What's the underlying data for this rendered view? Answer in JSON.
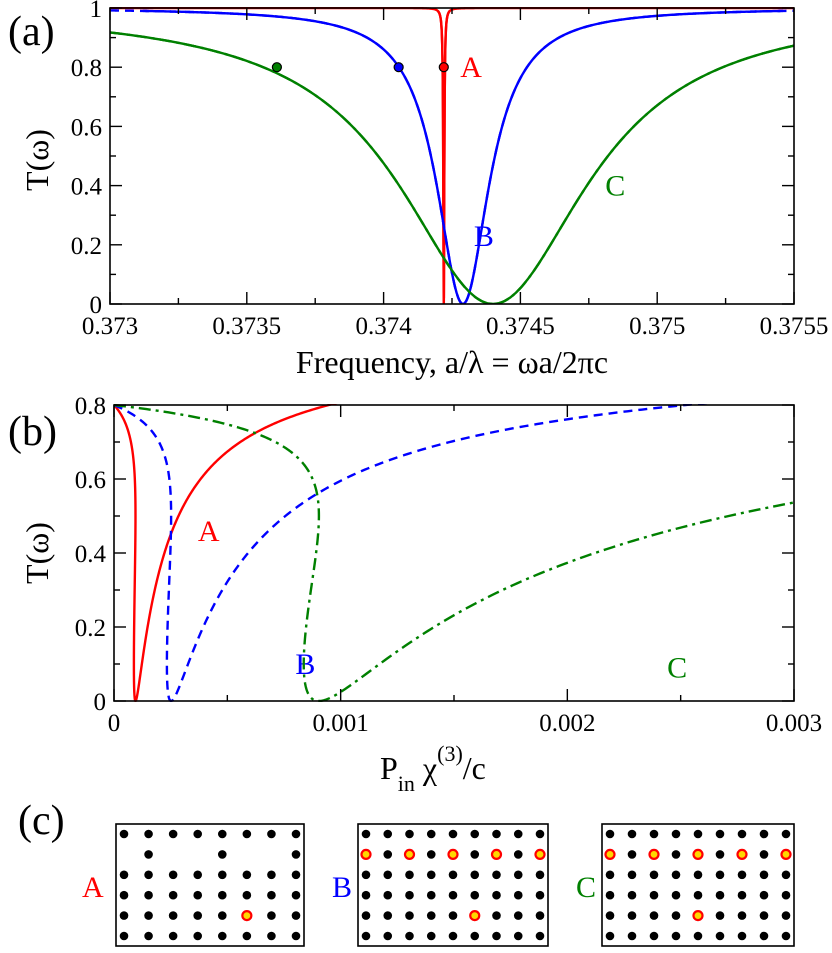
{
  "chart_data": [
    {
      "panel_label": "(a)",
      "type": "line",
      "title": "",
      "xlabel": "Frequency,  a/λ = ωa/2πc",
      "ylabel": "T(ω)",
      "xlim": [
        0.373,
        0.3755
      ],
      "ylim": [
        0,
        1
      ],
      "x_ticks": [
        0.373,
        0.3735,
        0.374,
        0.3745,
        0.375,
        0.3755
      ],
      "x_tick_labels": [
        "0.373",
        "0.3735",
        "0.374",
        "0.3745",
        "0.375",
        "0.3755"
      ],
      "y_ticks": [
        0,
        0.2,
        0.4,
        0.6,
        0.8,
        1
      ],
      "y_tick_labels": [
        "0",
        "0.2",
        "0.4",
        "0.6",
        "0.8",
        "1"
      ],
      "series": [
        {
          "name": "A",
          "color": "#ff0000",
          "style": "solid",
          "f0": 0.37422,
          "gamma": 2.2e-06,
          "marker": {
            "x": 0.37422,
            "y": 0.8
          },
          "label_pos": {
            "x": 0.37428,
            "y": 0.8
          }
        },
        {
          "name": "B",
          "color": "#0000ff",
          "style": "dashed",
          "f0": 0.37429,
          "gamma": 0.000117,
          "marker": {
            "x": 0.374055,
            "y": 0.8
          },
          "label_pos": {
            "x": 0.37433,
            "y": 0.23
          }
        },
        {
          "name": "C",
          "color": "#008000",
          "style": "dashdot",
          "f0": 0.3744,
          "gamma": 0.00042,
          "marker": {
            "x": 0.37361,
            "y": 0.8
          },
          "label_pos": {
            "x": 0.37481,
            "y": 0.4
          }
        }
      ]
    },
    {
      "panel_label": "(b)",
      "type": "line",
      "title": "",
      "xlabel_main": "P",
      "xlabel_sub": "in",
      "xlabel_chi": " χ",
      "xlabel_sup": "(3)",
      "xlabel_tail": "/c",
      "ylabel": "T(ω)",
      "xlim": [
        0,
        0.003
      ],
      "ylim": [
        0,
        0.8
      ],
      "x_ticks": [
        0,
        0.001,
        0.002,
        0.003
      ],
      "x_tick_labels": [
        "0",
        "0.001",
        "0.002",
        "0.003"
      ],
      "y_ticks": [
        0,
        0.2,
        0.4,
        0.6,
        0.8
      ],
      "y_tick_labels": [
        "0",
        "0.2",
        "0.4",
        "0.6",
        "0.8"
      ],
      "series": [
        {
          "name": "A",
          "color": "#ff0000",
          "style": "solid",
          "scale": 0.000237,
          "label_pos": {
            "x": 0.00037,
            "y": 0.46
          }
        },
        {
          "name": "B",
          "color": "#0000ff",
          "style": "dashed",
          "scale": 0.00063,
          "label_pos": {
            "x": 0.0008,
            "y": 0.1
          }
        },
        {
          "name": "C",
          "color": "#008000",
          "style": "dashdot",
          "scale": 0.00226,
          "label_pos": {
            "x": 0.00244,
            "y": 0.09
          }
        }
      ]
    }
  ],
  "panel_c": {
    "panel_label": "(c)",
    "lattices": [
      {
        "name": "A",
        "color": "#ff0000",
        "rows": 6,
        "cols": 8,
        "removed": [
          [
            1,
            0
          ],
          [
            1,
            2
          ],
          [
            1,
            3
          ],
          [
            1,
            5
          ],
          [
            1,
            6
          ]
        ],
        "defects": [
          [
            4,
            5
          ]
        ]
      },
      {
        "name": "B",
        "color": "#0000ff",
        "rows": 6,
        "cols": 9,
        "removed": [],
        "defects": [
          [
            1,
            0
          ],
          [
            1,
            2
          ],
          [
            1,
            4
          ],
          [
            1,
            6
          ],
          [
            1,
            8
          ],
          [
            4,
            5
          ]
        ],
        "offset_row": 1
      },
      {
        "name": "C",
        "color": "#008000",
        "rows": 6,
        "cols": 9,
        "removed": [],
        "defects": [
          [
            1,
            0
          ],
          [
            1,
            2
          ],
          [
            1,
            4
          ],
          [
            1,
            6
          ],
          [
            1,
            8
          ],
          [
            4,
            4
          ]
        ],
        "offset_row": 1
      }
    ]
  }
}
